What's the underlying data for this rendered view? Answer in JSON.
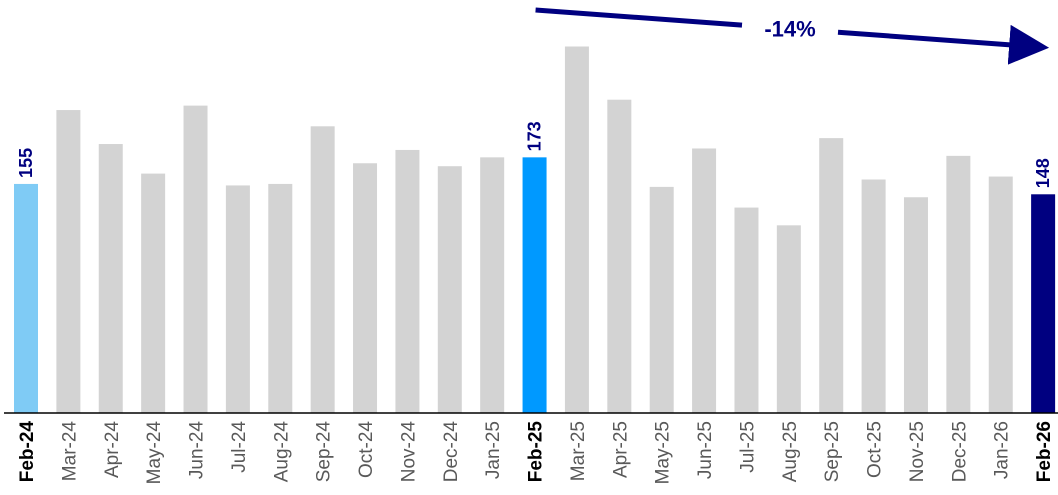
{
  "chart_data": {
    "type": "bar",
    "categories": [
      "Feb-24",
      "Mar-24",
      "Apr-24",
      "May-24",
      "Jun-24",
      "Jul-24",
      "Aug-24",
      "Sep-24",
      "Oct-24",
      "Nov-24",
      "Dec-24",
      "Jan-25",
      "Feb-25",
      "Mar-25",
      "Apr-25",
      "May-25",
      "Jun-25",
      "Jul-25",
      "Aug-25",
      "Sep-25",
      "Oct-25",
      "Nov-25",
      "Dec-25",
      "Jan-26",
      "Feb-26"
    ],
    "values": [
      155,
      205,
      182,
      162,
      208,
      154,
      155,
      194,
      169,
      178,
      167,
      173,
      173,
      248,
      212,
      153,
      179,
      139,
      127,
      186,
      158,
      146,
      174,
      160,
      148
    ],
    "highlight": {
      "Feb-24": "#7fcbf5",
      "Feb-25": "#0099ff",
      "Feb-26": "#000080"
    },
    "default_color": "#d3d3d3",
    "data_labels": [
      {
        "category": "Feb-24",
        "text": "155"
      },
      {
        "category": "Feb-25",
        "text": "173"
      },
      {
        "category": "Feb-26",
        "text": "148"
      }
    ],
    "label_color": "#000080",
    "ylim": [
      0,
      270
    ],
    "title": "",
    "xlabel": "",
    "ylabel": "",
    "grid": false,
    "annotation": {
      "text": "-14%",
      "color": "#000080",
      "from": "Feb-25",
      "to": "Feb-26"
    }
  }
}
